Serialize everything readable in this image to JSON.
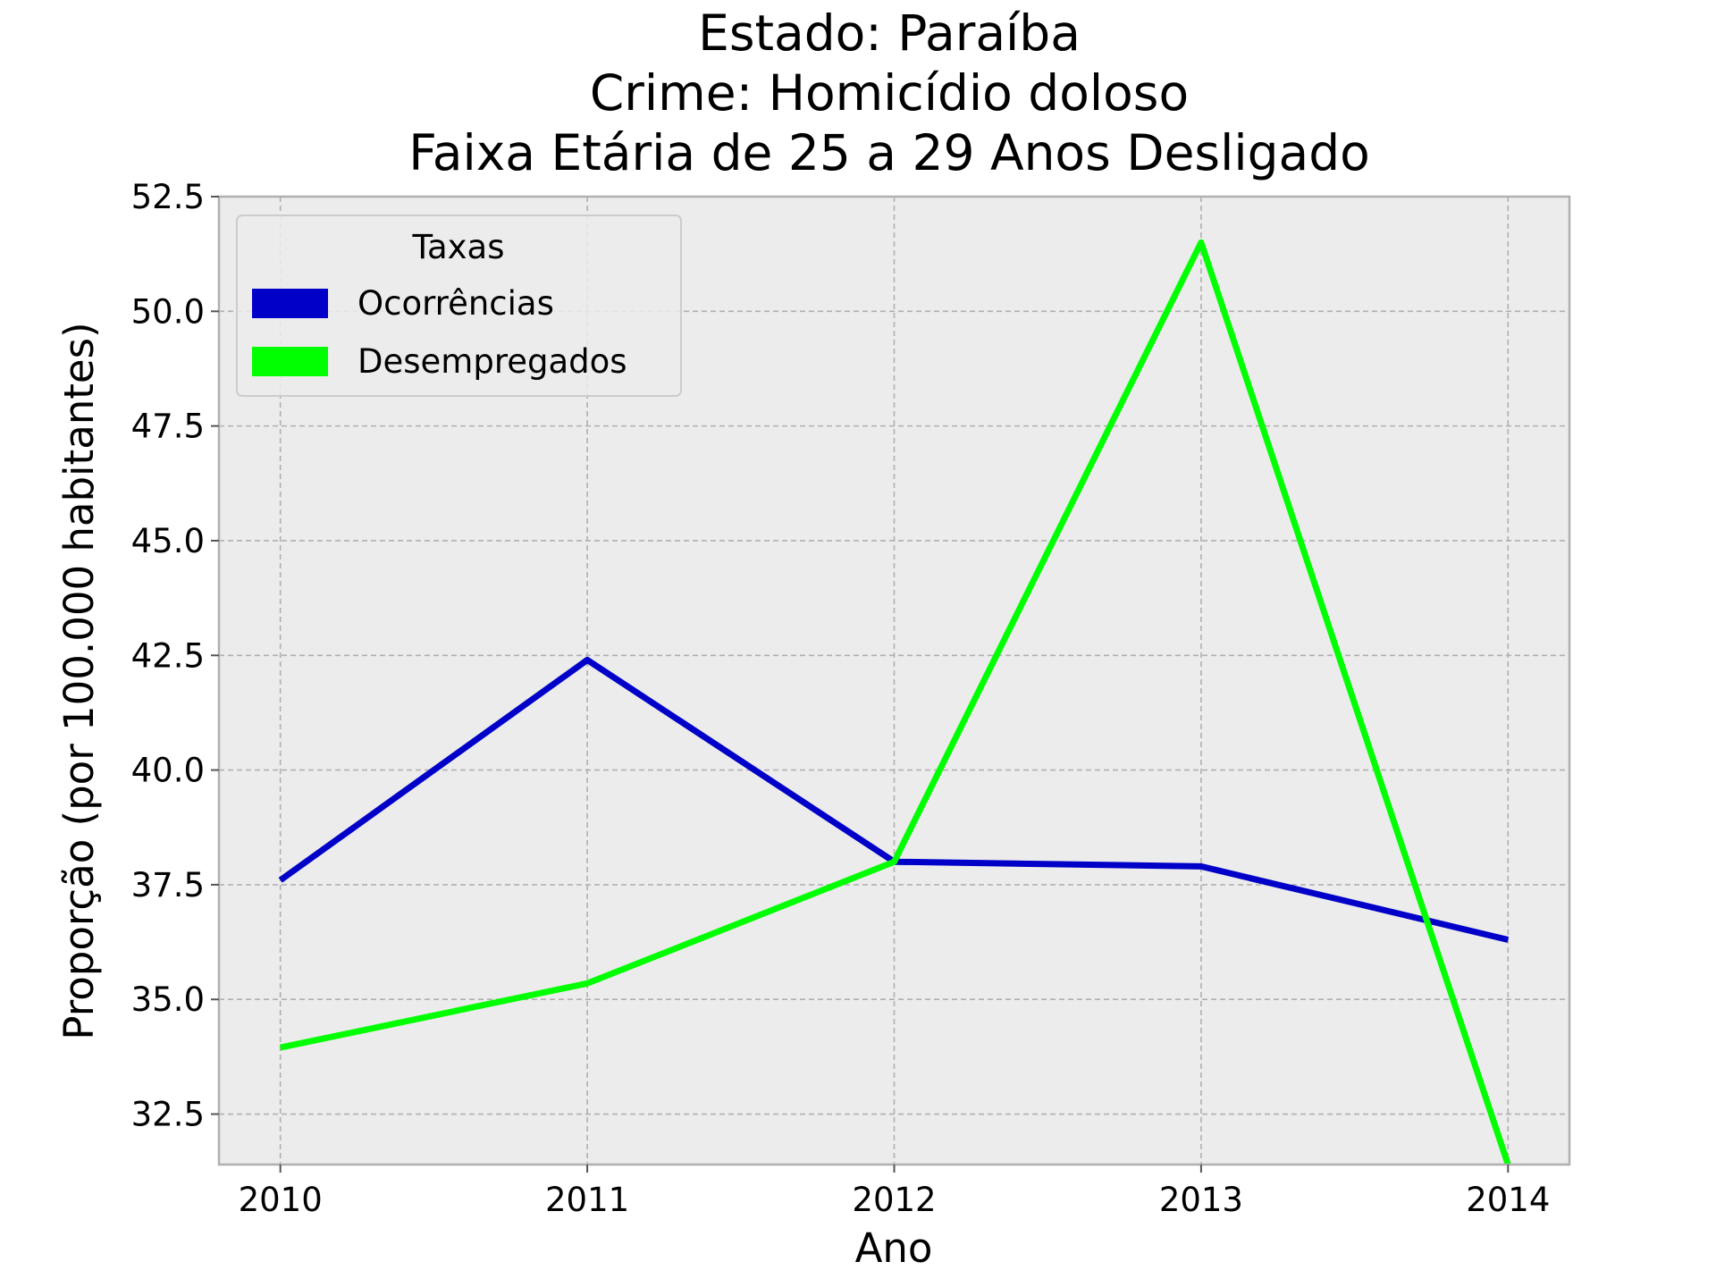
{
  "chart_data": {
    "type": "line",
    "title_lines": [
      "Estado: Paraíba",
      "Crime: Homicídio doloso",
      "Faixa Etária de 25 a 29 Anos   Desligado"
    ],
    "xlabel": "Ano",
    "ylabel": "Proporção (por 100.000 habitantes)",
    "x": [
      2010,
      2011,
      2012,
      2013,
      2014
    ],
    "x_tick_labels": [
      "2010",
      "2011",
      "2012",
      "2013",
      "2014"
    ],
    "y_tick_values": [
      32.5,
      35.0,
      37.5,
      40.0,
      42.5,
      45.0,
      47.5,
      50.0,
      52.5
    ],
    "y_tick_labels": [
      "32.5",
      "35.0",
      "37.5",
      "40.0",
      "42.5",
      "45.0",
      "47.5",
      "50.0",
      "52.5"
    ],
    "ylim": [
      31.4,
      52.5
    ],
    "xlim": [
      2009.8,
      2014.2
    ],
    "grid": true,
    "background_color": "#ececec",
    "legend": {
      "title": "Taxas",
      "placement": "top-left",
      "entries": [
        "Ocorrências",
        "Desempregados"
      ]
    },
    "series": [
      {
        "name": "Ocorrências",
        "color": "#0000c8",
        "values": [
          37.6,
          42.4,
          38.0,
          37.9,
          36.3
        ]
      },
      {
        "name": "Desempregados",
        "color": "#00ff00",
        "values": [
          33.95,
          35.35,
          38.0,
          51.5,
          31.4
        ]
      }
    ]
  }
}
